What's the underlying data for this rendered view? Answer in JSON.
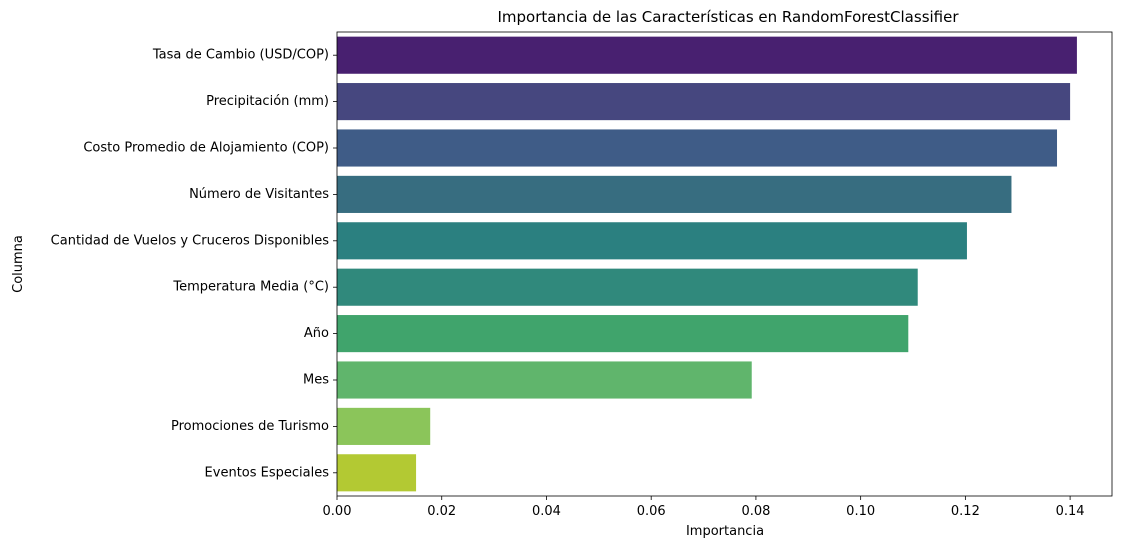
{
  "chart_data": {
    "type": "bar",
    "orientation": "horizontal",
    "title": "Importancia de las Características en RandomForestClassifier",
    "xlabel": "Importancia",
    "ylabel": "Columna",
    "xlim": [
      0,
      0.148
    ],
    "xticks": [
      0,
      0.02,
      0.04,
      0.06,
      0.08,
      0.1,
      0.12,
      0.14
    ],
    "xtick_labels": [
      "0.00",
      "0.02",
      "0.04",
      "0.06",
      "0.08",
      "0.10",
      "0.12",
      "0.14"
    ],
    "categories": [
      "Tasa de Cambio (USD/COP)",
      "Precipitación (mm)",
      "Costo Promedio de Alojamiento (COP)",
      "Número de Visitantes",
      "Cantidad de Vuelos y Cruceros Disponibles",
      "Temperatura Media (°C)",
      "Año",
      "Mes",
      "Promociones de Turismo",
      "Eventos Especiales"
    ],
    "values": [
      0.1413,
      0.14,
      0.1375,
      0.1288,
      0.1203,
      0.1109,
      0.1091,
      0.0792,
      0.0178,
      0.0151
    ],
    "colors": [
      "#482070",
      "#46477f",
      "#3f5c87",
      "#376d80",
      "#2b8080",
      "#30897c",
      "#40a46c",
      "#60b56c",
      "#8bc55a",
      "#b3c933"
    ],
    "grid": false,
    "legend": "none"
  }
}
